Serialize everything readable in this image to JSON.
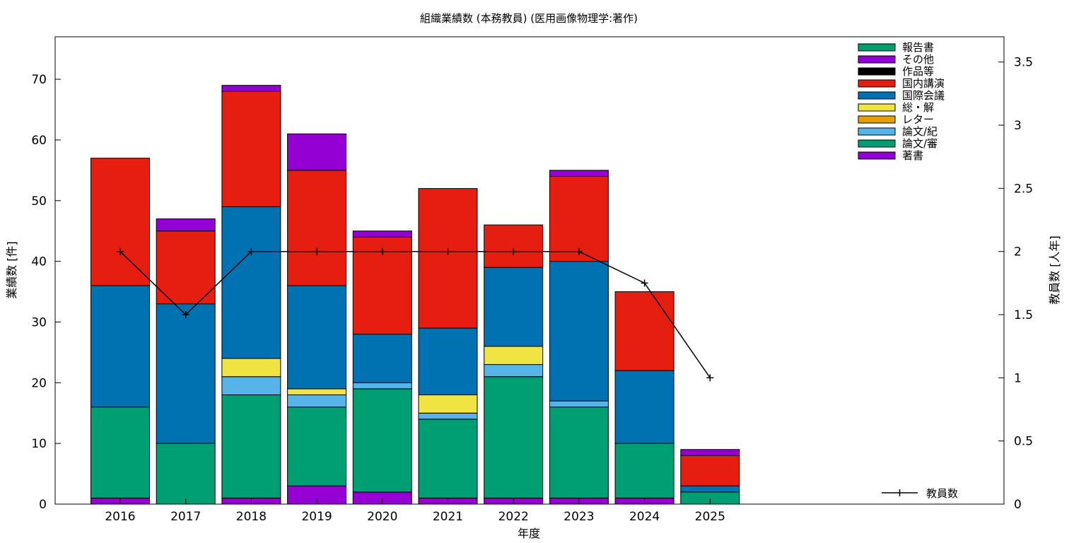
{
  "chart_data": {
    "type": "bar",
    "title": "組織業績数 (本務教員) (医用画像物理学:著作)",
    "xlabel": "年度",
    "ylabel": "業績数 [件]",
    "y2label": "教員数 [人年]",
    "categories": [
      "2016",
      "2017",
      "2018",
      "2019",
      "2020",
      "2021",
      "2022",
      "2023",
      "2024",
      "2025"
    ],
    "ylim": [
      0,
      77
    ],
    "yticks": [
      0,
      10,
      20,
      30,
      40,
      50,
      60,
      70
    ],
    "y2lim": [
      0,
      3.7
    ],
    "y2ticks": [
      "0",
      "0.5",
      "1",
      "1.5",
      "2",
      "2.5",
      "3",
      "3.5"
    ],
    "stacked": true,
    "series": [
      {
        "name": "著書",
        "color": "#9400d3",
        "values": [
          1,
          0,
          1,
          3,
          2,
          1,
          1,
          1,
          1,
          0
        ]
      },
      {
        "name": "論文/審",
        "color": "#009e73",
        "values": [
          15,
          10,
          17,
          13,
          17,
          13,
          20,
          15,
          9,
          2
        ]
      },
      {
        "name": "論文/紀",
        "color": "#56b4e9",
        "values": [
          0,
          0,
          3,
          2,
          1,
          1,
          2,
          1,
          0,
          0
        ]
      },
      {
        "name": "レター",
        "color": "#e69f00",
        "values": [
          0,
          0,
          0,
          0,
          0,
          0,
          0,
          0,
          0,
          0
        ]
      },
      {
        "name": "総・解",
        "color": "#f0e442",
        "values": [
          0,
          0,
          3,
          1,
          0,
          3,
          3,
          0,
          0,
          0
        ]
      },
      {
        "name": "国際会議",
        "color": "#0072b2",
        "values": [
          20,
          23,
          25,
          17,
          8,
          11,
          13,
          23,
          12,
          1
        ]
      },
      {
        "name": "国内講演",
        "color": "#e51e10",
        "values": [
          21,
          12,
          19,
          19,
          16,
          23,
          7,
          14,
          13,
          5
        ]
      },
      {
        "name": "作品等",
        "color": "#000000",
        "values": [
          0,
          0,
          0,
          0,
          0,
          0,
          0,
          0,
          0,
          0
        ]
      },
      {
        "name": "その他",
        "color": "#9400d3",
        "values": [
          0,
          2,
          1,
          6,
          1,
          0,
          0,
          1,
          0,
          1
        ]
      },
      {
        "name": "報告書",
        "color": "#009e73",
        "values": [
          0,
          0,
          0,
          0,
          0,
          0,
          0,
          0,
          0,
          0
        ]
      }
    ],
    "legend_order": [
      "報告書",
      "その他",
      "作品等",
      "国内講演",
      "国際会議",
      "総・解",
      "レター",
      "論文/紀",
      "論文/審",
      "著書"
    ],
    "legend_position": "top-right",
    "line_series": {
      "name": "教員数",
      "axis": "y2",
      "color": "#000000",
      "x": [
        "2016",
        "2017",
        "2018",
        "2019",
        "2020",
        "2021",
        "2022",
        "2023",
        "2024",
        "2025"
      ],
      "values": [
        2,
        1.5,
        2,
        2,
        2,
        2,
        2,
        2,
        1.75,
        1
      ]
    },
    "line_legend_position": "bottom-right",
    "grid": false
  }
}
